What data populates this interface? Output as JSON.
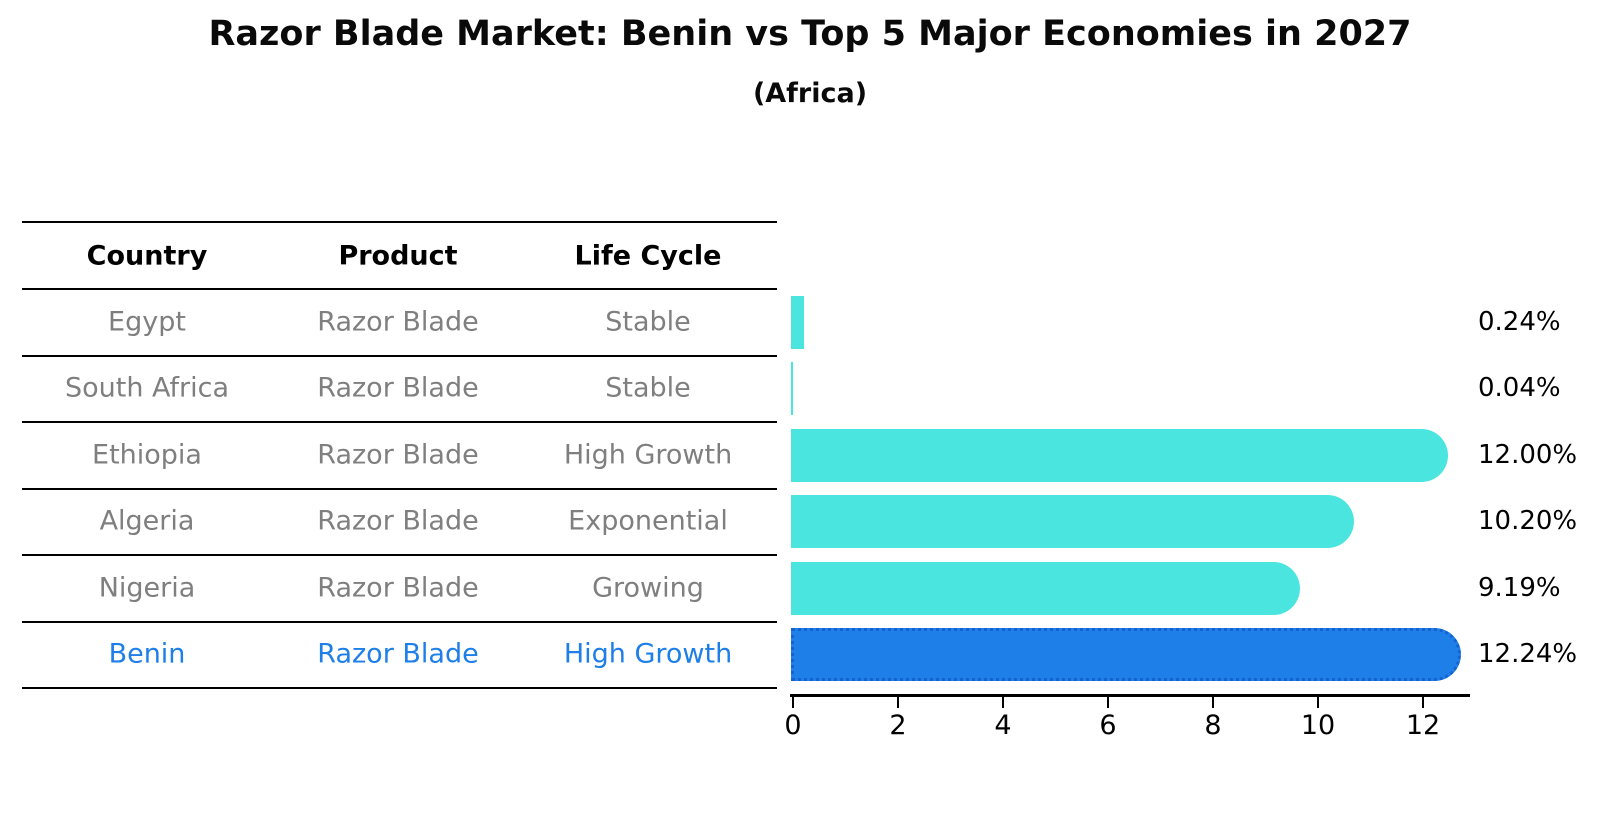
{
  "title": "Razor Blade Market: Benin vs Top 5 Major Economies in 2027",
  "subtitle": "(Africa)",
  "table": {
    "headers": [
      "Country",
      "Product",
      "Life Cycle"
    ],
    "rows": [
      {
        "country": "Egypt",
        "product": "Razor Blade",
        "life_cycle": "Stable",
        "highlight": false
      },
      {
        "country": "South Africa",
        "product": "Razor Blade",
        "life_cycle": "Stable",
        "highlight": false
      },
      {
        "country": "Ethiopia",
        "product": "Razor Blade",
        "life_cycle": "High Growth",
        "highlight": false
      },
      {
        "country": "Algeria",
        "product": "Razor Blade",
        "life_cycle": "Exponential",
        "highlight": false
      },
      {
        "country": "Nigeria",
        "product": "Razor Blade",
        "life_cycle": "Growing",
        "highlight": false
      },
      {
        "country": "Benin",
        "product": "Razor Blade",
        "life_cycle": "High Growth",
        "highlight": true
      }
    ]
  },
  "chart_data": {
    "type": "bar",
    "orientation": "horizontal",
    "title": "Razor Blade Market: Benin vs Top 5 Major Economies in 2027",
    "subtitle": "(Africa)",
    "categories": [
      "Egypt",
      "South Africa",
      "Ethiopia",
      "Algeria",
      "Nigeria",
      "Benin"
    ],
    "values": [
      0.24,
      0.04,
      12.0,
      10.2,
      9.19,
      12.24
    ],
    "value_labels": [
      "0.24%",
      "0.04%",
      "12.00%",
      "10.20%",
      "9.19%",
      "12.24%"
    ],
    "unit": "%",
    "xlabel": "",
    "ylabel": "",
    "xlim": [
      0,
      12.9
    ],
    "xticks": [
      "0",
      "2",
      "4",
      "6",
      "8",
      "10",
      "12"
    ],
    "xtick_values": [
      0,
      2,
      4,
      6,
      8,
      10,
      12
    ],
    "grid": false,
    "legend": false,
    "highlight_index": 5,
    "colors": {
      "bar": "#4be5e0",
      "highlight_bar": "#1e7fe8",
      "highlight_bar_border": "#1462ce",
      "highlight_text": "#1e7fe8",
      "row_text": "#7f7f7f",
      "header_text": "#000000",
      "axis": "#000000"
    }
  }
}
